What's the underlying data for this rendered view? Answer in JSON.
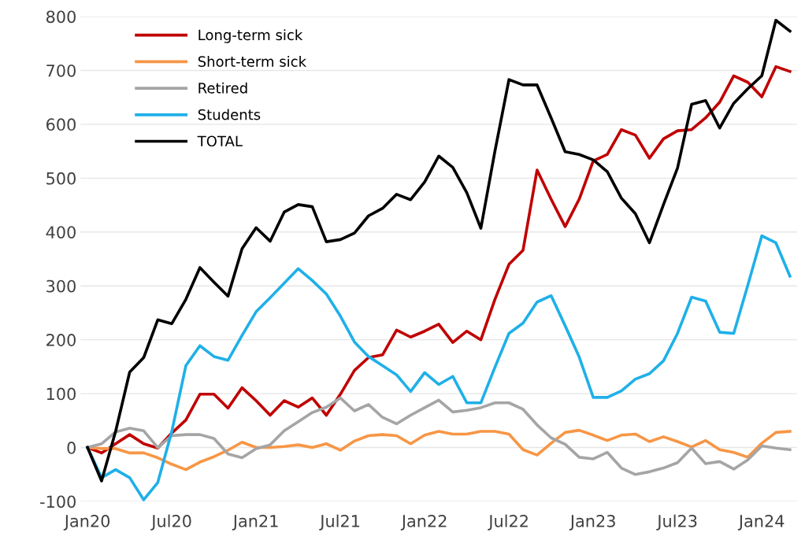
{
  "chart_data": {
    "type": "line",
    "categories": [
      "Jan20",
      null,
      null,
      null,
      null,
      null,
      "Jul20",
      null,
      null,
      null,
      null,
      null,
      "Jan21",
      null,
      null,
      null,
      null,
      null,
      "Jul21",
      null,
      null,
      null,
      null,
      null,
      "Jan22",
      null,
      null,
      null,
      null,
      null,
      "Jul22",
      null,
      null,
      null,
      null,
      null,
      "Jan23",
      null,
      null,
      null,
      null,
      null,
      "Jul23",
      null,
      null,
      null,
      null,
      null,
      "Jan24",
      null,
      null
    ],
    "series": [
      {
        "name": "Long-term sick",
        "color": "#c00000",
        "values": [
          0,
          -10,
          7,
          24,
          7,
          -1,
          27,
          51,
          99,
          99,
          73,
          111,
          87,
          60,
          87,
          75,
          92,
          60,
          99,
          143,
          167,
          172,
          218,
          205,
          216,
          229,
          195,
          216,
          200,
          275,
          340,
          366,
          515,
          461,
          410,
          461,
          532,
          544,
          590,
          580,
          537,
          573,
          588,
          590,
          612,
          641,
          690,
          678,
          651,
          707,
          698
        ]
      },
      {
        "name": "Short-term sick",
        "color": "#f79646",
        "values": [
          0,
          -2,
          -2,
          -10,
          -10,
          -19,
          -31,
          -41,
          -27,
          -17,
          -5,
          10,
          0,
          0,
          2,
          5,
          0,
          7,
          -5,
          12,
          22,
          24,
          22,
          7,
          23,
          30,
          25,
          25,
          30,
          30,
          25,
          -4,
          -14,
          8,
          28,
          32,
          23,
          13,
          23,
          25,
          11,
          20,
          11,
          1,
          13,
          -4,
          -9,
          -18,
          8,
          28,
          30
        ]
      },
      {
        "name": "Retired",
        "color": "#a5a5a5",
        "values": [
          0,
          7,
          29,
          36,
          31,
          0,
          22,
          24,
          24,
          17,
          -12,
          -19,
          -2,
          5,
          31,
          48,
          65,
          75,
          92,
          68,
          80,
          56,
          44,
          60,
          74,
          88,
          66,
          69,
          74,
          83,
          83,
          71,
          42,
          18,
          6,
          -18,
          -21,
          -9,
          -38,
          -50,
          -45,
          -38,
          -28,
          -1,
          -30,
          -26,
          -40,
          -23,
          3,
          -1,
          -4
        ]
      },
      {
        "name": "Students",
        "color": "#1fb0e8",
        "values": [
          0,
          -56,
          -41,
          -56,
          -97,
          -65,
          30,
          152,
          189,
          169,
          162,
          208,
          252,
          278,
          305,
          332,
          310,
          285,
          244,
          196,
          169,
          152,
          135,
          104,
          139,
          117,
          132,
          83,
          83,
          149,
          212,
          231,
          270,
          282,
          226,
          168,
          93,
          93,
          105,
          127,
          137,
          161,
          212,
          279,
          272,
          214,
          212,
          301,
          393,
          380,
          318
        ]
      },
      {
        "name": "TOTAL",
        "color": "#000000",
        "values": [
          0,
          -62,
          30,
          140,
          167,
          237,
          230,
          275,
          334,
          307,
          281,
          369,
          408,
          383,
          437,
          451,
          447,
          382,
          386,
          398,
          430,
          444,
          470,
          460,
          493,
          541,
          520,
          473,
          407,
          550,
          683,
          673,
          673,
          612,
          549,
          544,
          534,
          512,
          463,
          434,
          380,
          451,
          519,
          637,
          644,
          593,
          639,
          666,
          690,
          793,
          773
        ]
      }
    ],
    "ylim": [
      -100,
      800
    ],
    "yticks": [
      -100,
      0,
      100,
      200,
      300,
      400,
      500,
      600,
      700,
      800
    ],
    "grid": "y",
    "legend": "top left",
    "marker": "none",
    "line_style": "solid"
  }
}
